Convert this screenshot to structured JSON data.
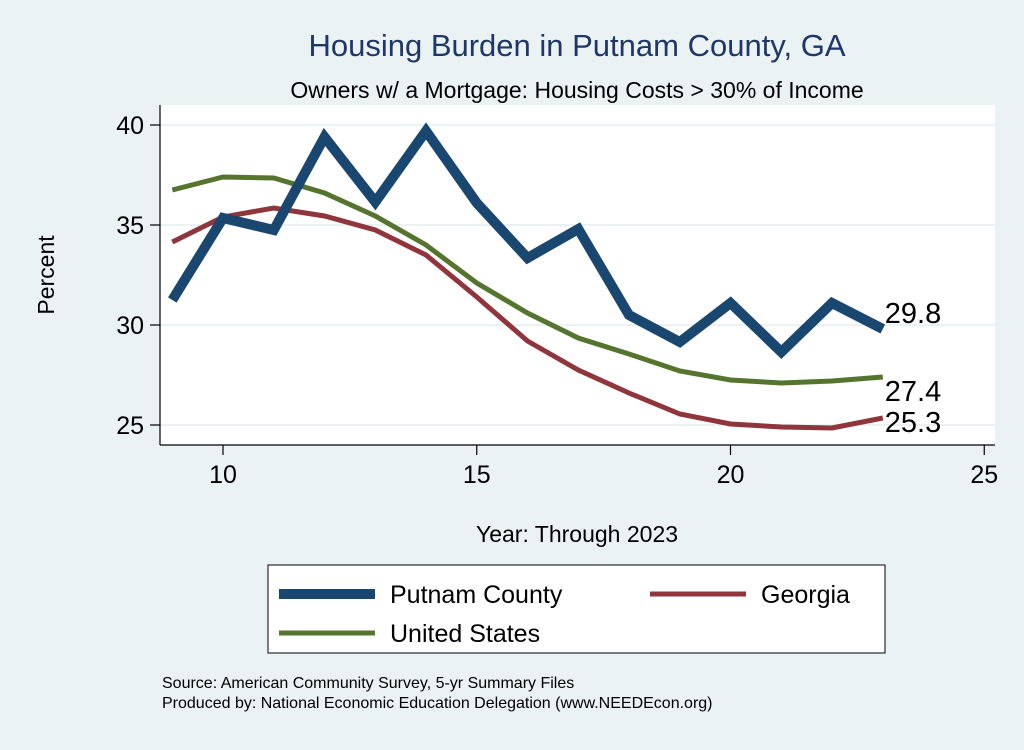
{
  "chart_data": {
    "type": "line",
    "title": "Housing Burden in Putnam County, GA",
    "subtitle": "Owners w/ a Mortgage: Housing Costs > 30% of Income",
    "xlabel": "Year: Through 2023",
    "ylabel": "Percent",
    "xlim": [
      8.75,
      25.2
    ],
    "ylim": [
      24,
      41
    ],
    "xticks": [
      10,
      15,
      20,
      25
    ],
    "yticks": [
      25,
      30,
      35,
      40
    ],
    "grid": true,
    "legend_position": "bottom",
    "x": [
      9,
      10,
      11,
      12,
      13,
      14,
      15,
      16,
      17,
      18,
      19,
      20,
      21,
      22,
      23
    ],
    "series": [
      {
        "name": "Putnam County",
        "color": "#1a476f",
        "end_label": "29.8",
        "values": [
          31.25,
          35.35,
          34.75,
          39.4,
          36.15,
          39.7,
          36.1,
          33.35,
          34.8,
          30.5,
          29.15,
          31.1,
          28.65,
          31.1,
          29.8
        ]
      },
      {
        "name": "Georgia",
        "color": "#90353b",
        "end_label": "25.3",
        "values": [
          34.15,
          35.4,
          35.85,
          35.45,
          34.75,
          33.5,
          31.4,
          29.2,
          27.75,
          26.6,
          25.55,
          25.05,
          24.9,
          24.85,
          25.35
        ]
      },
      {
        "name": "United States",
        "color": "#55752f",
        "end_label": "27.4",
        "values": [
          36.75,
          37.4,
          37.35,
          36.6,
          35.45,
          34.0,
          32.1,
          30.6,
          29.35,
          28.55,
          27.7,
          27.25,
          27.1,
          27.2,
          27.4
        ]
      }
    ]
  },
  "notes": {
    "source": "Source: American Community Survey, 5-yr Summary Files",
    "produced": "Produced by: National Economic Education Delegation (www.NEEDEcon.org)"
  }
}
